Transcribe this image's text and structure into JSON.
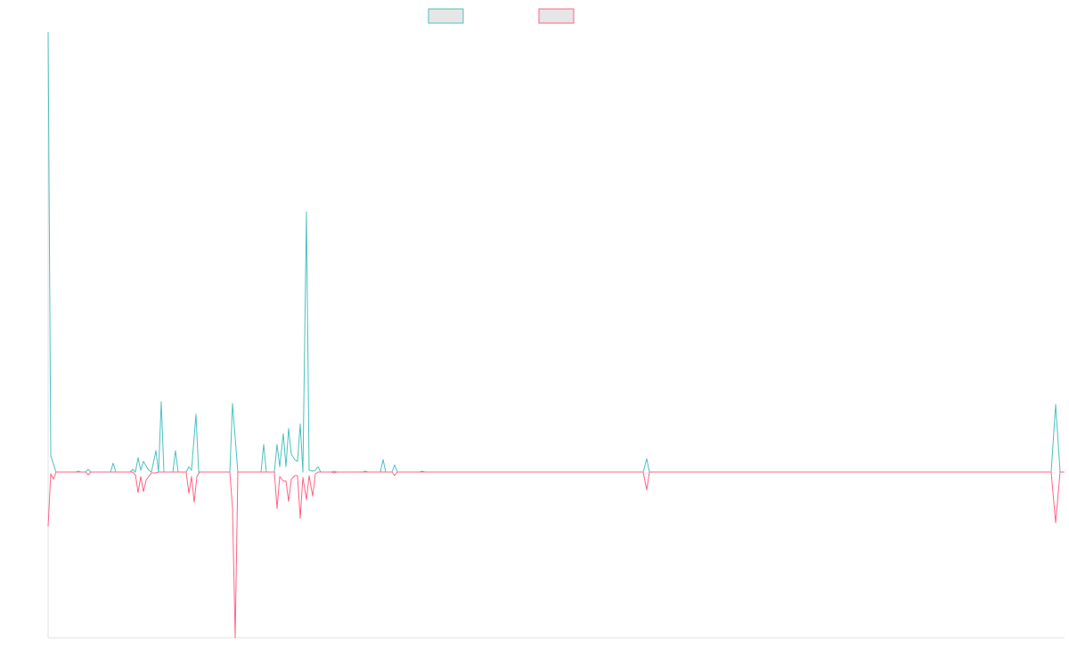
{
  "chart_data": {
    "type": "line",
    "xlim": [
      0,
      1141
    ],
    "ylim": [
      -186,
      494
    ],
    "series": [
      {
        "color": "#4bc0c0",
        "x": [
          0,
          3,
          9,
          31,
          34,
          37,
          42,
          45,
          48,
          70,
          73,
          76,
          92,
          95,
          98,
          101,
          104,
          107,
          113,
          116,
          121,
          124,
          127,
          130,
          140,
          143,
          146,
          155,
          158,
          161,
          166,
          169,
          204,
          207,
          213,
          239,
          242,
          245,
          254,
          257,
          260,
          264,
          267,
          270,
          273,
          277,
          280,
          283,
          286,
          290,
          293,
          297,
          300,
          303,
          306,
          318,
          321,
          324,
          353,
          356,
          359,
          373,
          376,
          379,
          386,
          389,
          392,
          417,
          420,
          423,
          668,
          672,
          675,
          1126,
          1131,
          1136,
          1141
        ],
        "values": [
          494,
          18,
          0,
          0,
          1,
          0,
          0,
          3,
          0,
          0,
          10,
          0,
          0,
          3,
          0,
          16,
          2,
          12,
          2,
          0,
          24,
          0,
          79,
          0,
          0,
          24,
          0,
          0,
          6,
          2,
          65,
          0,
          0,
          77,
          0,
          0,
          31,
          0,
          0,
          31,
          6,
          43,
          6,
          49,
          20,
          14,
          12,
          54,
          0,
          292,
          2,
          1,
          2,
          6,
          0,
          0,
          1,
          0,
          0,
          1,
          0,
          0,
          14,
          0,
          0,
          8,
          0,
          0,
          1,
          0,
          0,
          15,
          0,
          0,
          76,
          0,
          0
        ]
      },
      {
        "color": "#ff6384",
        "x": [
          0,
          3,
          6,
          9,
          42,
          45,
          48,
          95,
          98,
          101,
          104,
          107,
          110,
          113,
          116,
          121,
          124,
          155,
          158,
          161,
          164,
          167,
          170,
          204,
          207,
          210,
          213,
          254,
          257,
          260,
          264,
          267,
          270,
          273,
          277,
          280,
          283,
          286,
          290,
          293,
          297,
          300,
          303,
          318,
          321,
          324,
          386,
          389,
          392,
          668,
          672,
          675,
          1126,
          1131,
          1136,
          1141
        ],
        "values": [
          -61,
          -2,
          -8,
          0,
          0,
          -3,
          0,
          0,
          -3,
          -23,
          -5,
          -22,
          -9,
          -5,
          -1,
          -1,
          0,
          0,
          -24,
          -5,
          -34,
          -5,
          0,
          0,
          -40,
          -186,
          0,
          0,
          -41,
          -5,
          -10,
          -10,
          -33,
          -8,
          -4,
          -4,
          -52,
          -6,
          -31,
          -4,
          -27,
          -2,
          0,
          0,
          -1,
          0,
          0,
          -4,
          0,
          0,
          -20,
          0,
          0,
          -57,
          0,
          0
        ]
      }
    ]
  }
}
